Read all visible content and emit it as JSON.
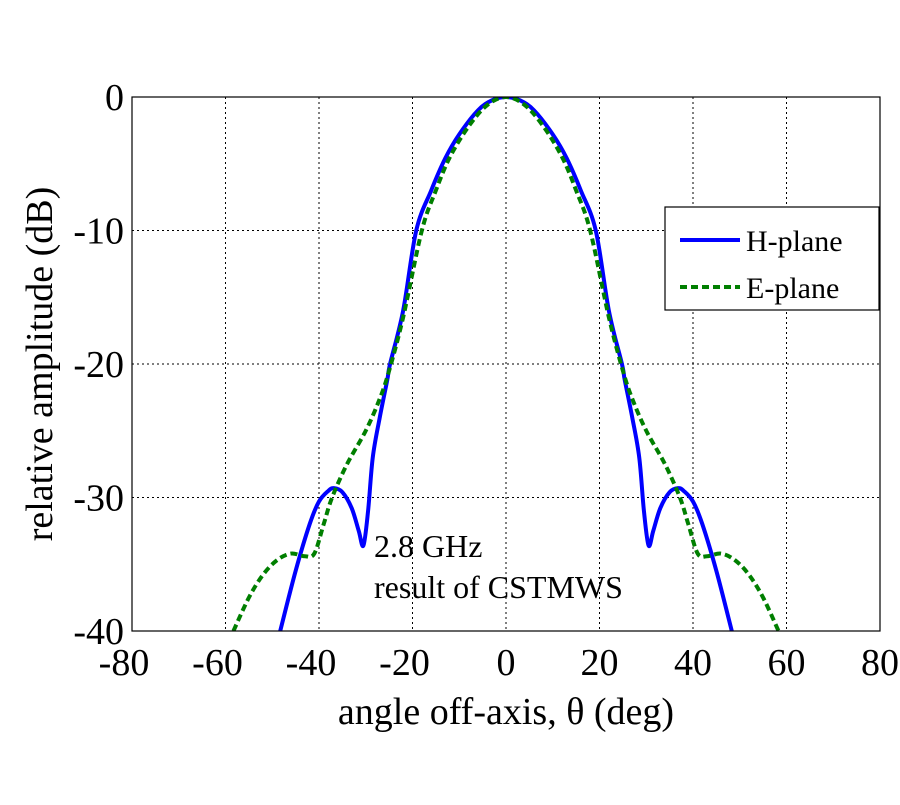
{
  "chart_data": {
    "type": "line",
    "title": "",
    "xlabel": "angle off-axis, θ (deg)",
    "ylabel": "relative amplitude (dB)",
    "xlim": [
      -80,
      80
    ],
    "ylim": [
      -40,
      0
    ],
    "xticks": [
      -80,
      -60,
      -40,
      -20,
      0,
      20,
      40,
      60,
      80
    ],
    "yticks": [
      0,
      -10,
      -20,
      -30,
      -40
    ],
    "grid": true,
    "legend_position": "right",
    "annotation": [
      "2.8 GHz",
      "result of CSTMWS"
    ],
    "series": [
      {
        "name": "H-plane",
        "color": "#0000ff",
        "style": "solid",
        "x": [
          -48.3,
          -45,
          -42,
          -40,
          -38,
          -36.8,
          -35,
          -33,
          -31.5,
          -30.5,
          -29.5,
          -28.5,
          -27,
          -25.4,
          -24.8,
          -22,
          -19.2,
          -16,
          -13,
          -10,
          -6,
          -3,
          0,
          3,
          6,
          10,
          13,
          16,
          19.2,
          22,
          24.8,
          25.4,
          27,
          28.5,
          29.5,
          30.5,
          31.5,
          33,
          35,
          36.8,
          38,
          40,
          42,
          45,
          48.3
        ],
        "y": [
          -40,
          -35.5,
          -32,
          -30.3,
          -29.5,
          -29.3,
          -29.6,
          -30.8,
          -32.5,
          -33.6,
          -31,
          -27,
          -24,
          -21.2,
          -20,
          -16,
          -10,
          -7,
          -4.6,
          -2.8,
          -1.0,
          -0.25,
          0,
          -0.25,
          -1.0,
          -2.8,
          -4.6,
          -7,
          -10,
          -16,
          -20,
          -21.2,
          -24,
          -27,
          -31,
          -33.6,
          -32.5,
          -30.8,
          -29.6,
          -29.3,
          -29.5,
          -30.3,
          -32,
          -35.5,
          -40
        ]
      },
      {
        "name": "E-plane",
        "color": "#007f00",
        "style": "dashed",
        "x": [
          -58.3,
          -55,
          -52,
          -49,
          -46,
          -43,
          -41,
          -39,
          -37.2,
          -34,
          -30,
          -27,
          -25,
          -22,
          -18,
          -15,
          -12,
          -8,
          -4,
          0,
          4,
          8,
          12,
          15,
          18,
          22,
          25,
          27,
          30,
          34,
          37.2,
          39,
          41,
          43,
          46,
          49,
          52,
          55,
          58.3
        ],
        "y": [
          -40,
          -37.5,
          -35.8,
          -34.7,
          -34.2,
          -34.4,
          -34.2,
          -32,
          -30,
          -27.5,
          -25,
          -22.6,
          -20.5,
          -16.5,
          -10,
          -7,
          -4.5,
          -2.2,
          -0.6,
          0,
          -0.6,
          -2.2,
          -4.5,
          -7,
          -10,
          -16.5,
          -20.5,
          -22.6,
          -25,
          -27.5,
          -30,
          -32,
          -34.2,
          -34.4,
          -34.2,
          -34.7,
          -35.8,
          -37.5,
          -40
        ]
      }
    ]
  }
}
